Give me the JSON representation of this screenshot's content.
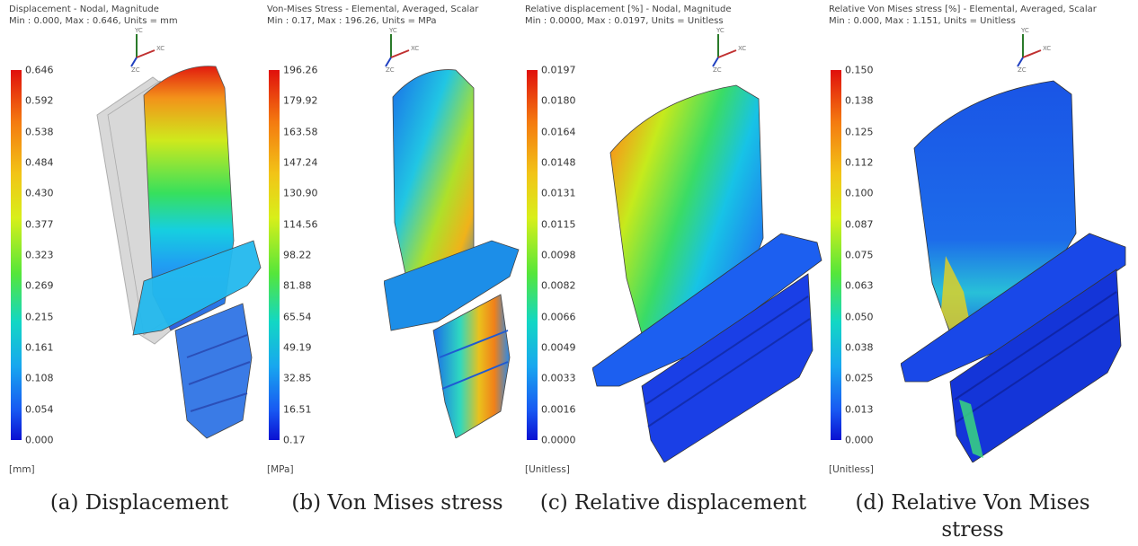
{
  "panels": [
    {
      "header1": "Displacement - Nodal, Magnitude",
      "header2": "Min : 0.000, Max : 0.646, Units = mm",
      "ticks": [
        "0.646",
        "0.592",
        "0.538",
        "0.484",
        "0.430",
        "0.377",
        "0.323",
        "0.269",
        "0.215",
        "0.161",
        "0.108",
        "0.054",
        "0.000"
      ],
      "unit": "[mm]",
      "caption": "(a) Displacement"
    },
    {
      "header1": "Von-Mises Stress - Elemental, Averaged, Scalar",
      "header2": "Min : 0.17, Max : 196.26, Units = MPa",
      "ticks": [
        "196.26",
        "179.92",
        "163.58",
        "147.24",
        "130.90",
        "114.56",
        "98.22",
        "81.88",
        "65.54",
        "49.19",
        "32.85",
        "16.51",
        "0.17"
      ],
      "unit": "[MPa]",
      "caption": "(b) Von Mises stress"
    },
    {
      "header1": "Relative displacement [%] - Nodal, Magnitude",
      "header2": "Min : 0.0000, Max : 0.0197, Units = Unitless",
      "ticks": [
        "0.0197",
        "0.0180",
        "0.0164",
        "0.0148",
        "0.0131",
        "0.0115",
        "0.0098",
        "0.0082",
        "0.0066",
        "0.0049",
        "0.0033",
        "0.0016",
        "0.0000"
      ],
      "unit": "[Unitless]",
      "caption": "(c) Relative displacement"
    },
    {
      "header1": "Relative Von Mises stress [%] - Elemental, Averaged, Scalar",
      "header2": "Min : 0.000, Max : 1.151, Units = Unitless",
      "ticks": [
        "0.150",
        "0.138",
        "0.125",
        "0.112",
        "0.100",
        "0.087",
        "0.075",
        "0.063",
        "0.050",
        "0.038",
        "0.025",
        "0.013",
        "0.000"
      ],
      "unit": "[Unitless]",
      "caption_line1": "(d) Relative Von Mises",
      "caption_line2": "stress"
    }
  ],
  "triad_labels": {
    "y": "YC",
    "x": "XC",
    "z": "ZC"
  }
}
